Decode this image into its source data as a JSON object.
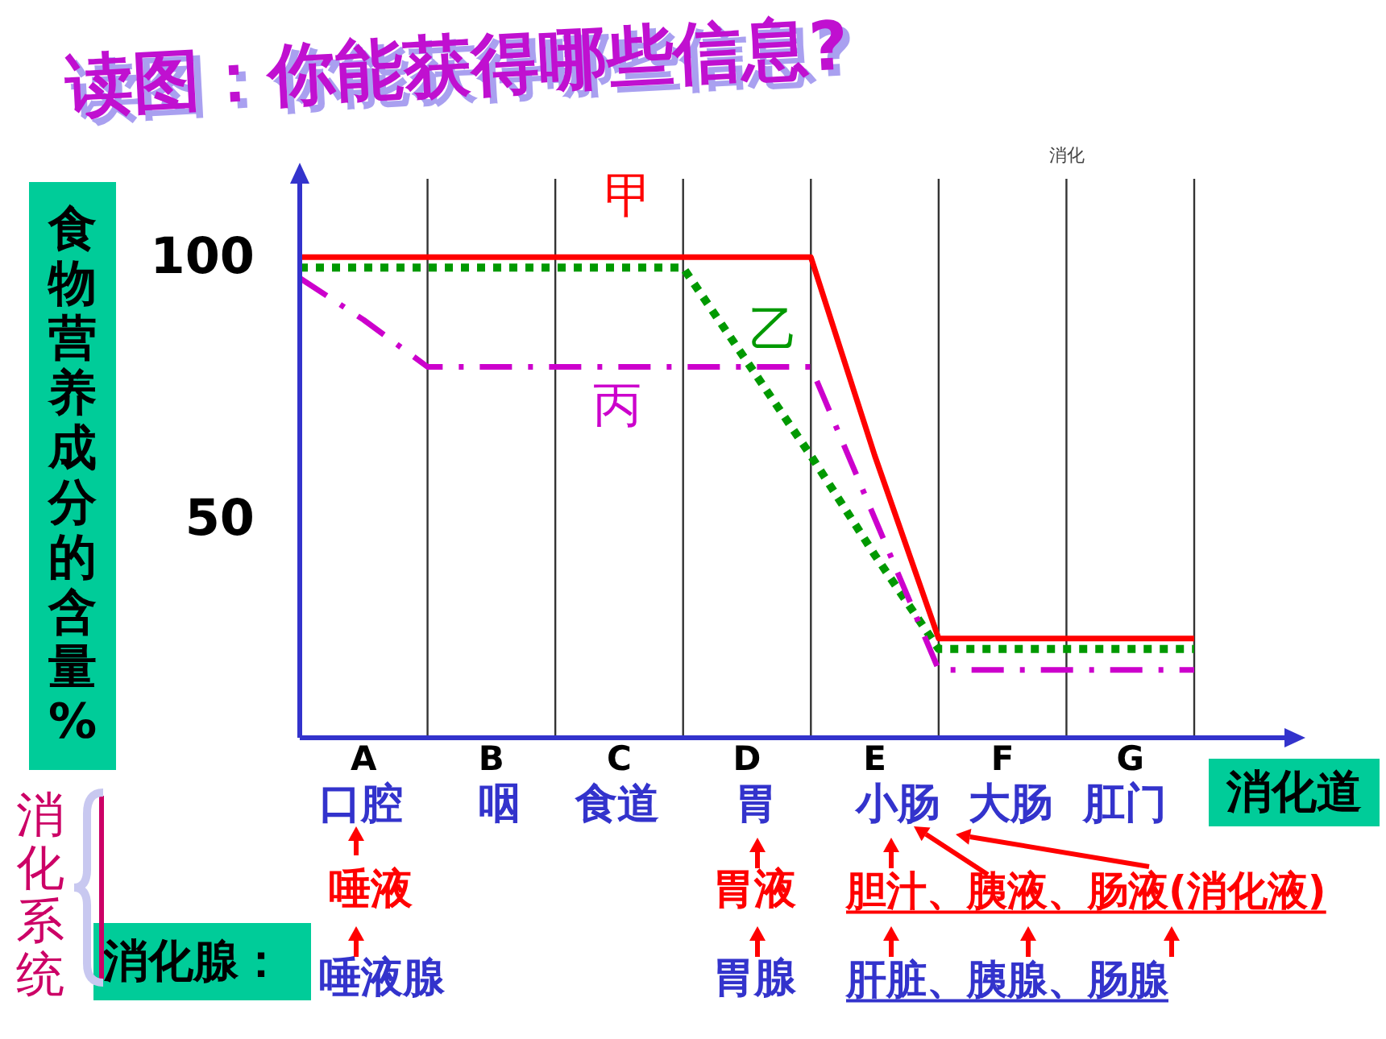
{
  "chart_data": {
    "type": "line",
    "title": "读图：你能获得哪些信息?",
    "xlabel": "消化道",
    "ylabel": "食物营养成分的含量%",
    "categories": [
      null,
      "A",
      null,
      "B",
      null,
      "C",
      null,
      "D",
      null,
      "E",
      null,
      "F",
      null,
      "G",
      null
    ],
    "ylim": [
      8,
      115
    ],
    "yticks": [
      50,
      100
    ],
    "grid": "x",
    "series": [
      {
        "name": "甲",
        "color": "#ff0000",
        "line_style": "solid",
        "values": [
          100,
          100,
          100,
          100,
          100,
          100,
          100,
          100,
          100,
          62,
          27,
          27,
          27,
          27,
          27
        ]
      },
      {
        "name": "乙",
        "color": "#009900",
        "line_style": "dotted",
        "values": [
          98,
          98,
          98,
          98,
          98,
          98,
          98,
          80,
          62,
          43,
          25,
          25,
          25,
          25,
          25
        ]
      },
      {
        "name": "丙",
        "color": "#cc00cc",
        "line_style": "dashdot",
        "values": [
          96,
          88,
          79,
          79,
          79,
          79,
          79,
          79,
          79,
          50,
          21,
          21,
          21,
          21,
          21
        ]
      }
    ],
    "annotations": [
      "消化",
      "口腔",
      "咽",
      "食道",
      "胃",
      "小肠",
      "大肠",
      "肛门",
      "唾液",
      "唾液腺",
      "胃液",
      "胃腺",
      "胆汁、胰液、肠液(消化液)",
      "肝脏、胰腺、肠腺",
      "消化系统",
      "消化腺："
    ]
  }
}
